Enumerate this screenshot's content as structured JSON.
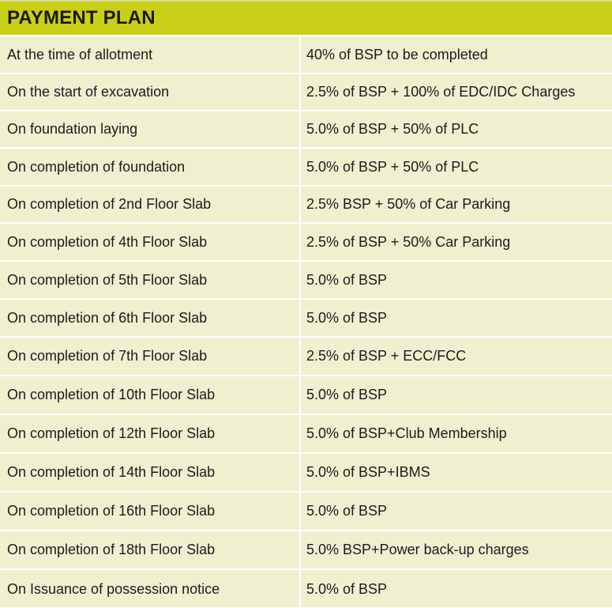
{
  "title": "PAYMENT PLAN",
  "rows": [
    {
      "stage": "At the time of allotment",
      "amount": "40% of BSP to be completed"
    },
    {
      "stage": "On the start of excavation",
      "amount": "2.5% of BSP + 100% of EDC/IDC Charges"
    },
    {
      "stage": "On foundation laying",
      "amount": "5.0% of BSP + 50% of PLC"
    },
    {
      "stage": "On completion of foundation",
      "amount": "5.0% of BSP + 50% of PLC"
    },
    {
      "stage": "On completion of 2nd Floor Slab",
      "amount": "2.5% BSP + 50% of Car Parking"
    },
    {
      "stage": "On completion of 4th Floor Slab",
      "amount": "2.5% of BSP + 50% Car Parking"
    },
    {
      "stage": "On completion of 5th Floor Slab",
      "amount": "5.0% of BSP"
    },
    {
      "stage": "On completion of 6th Floor Slab",
      "amount": "5.0% of BSP"
    },
    {
      "stage": "On completion of 7th Floor Slab",
      "amount": "2.5% of BSP + ECC/FCC"
    },
    {
      "stage": "On completion of 10th Floor Slab",
      "amount": "5.0% of BSP"
    },
    {
      "stage": "On completion of 12th Floor Slab",
      "amount": "5.0% of BSP+Club Membership"
    },
    {
      "stage": "On completion of 14th Floor Slab",
      "amount": "5.0% of BSP+IBMS"
    },
    {
      "stage": "On completion of 16th Floor Slab",
      "amount": "5.0% of BSP"
    },
    {
      "stage": "On completion of 18th Floor Slab",
      "amount": "5.0% BSP+Power back-up charges"
    },
    {
      "stage": "On Issuance of possession notice",
      "amount": "5.0% of BSP"
    }
  ],
  "colors": {
    "header_bg": "#c9cf16",
    "row_bg": "#eef0d0",
    "divider": "#ffffff"
  }
}
